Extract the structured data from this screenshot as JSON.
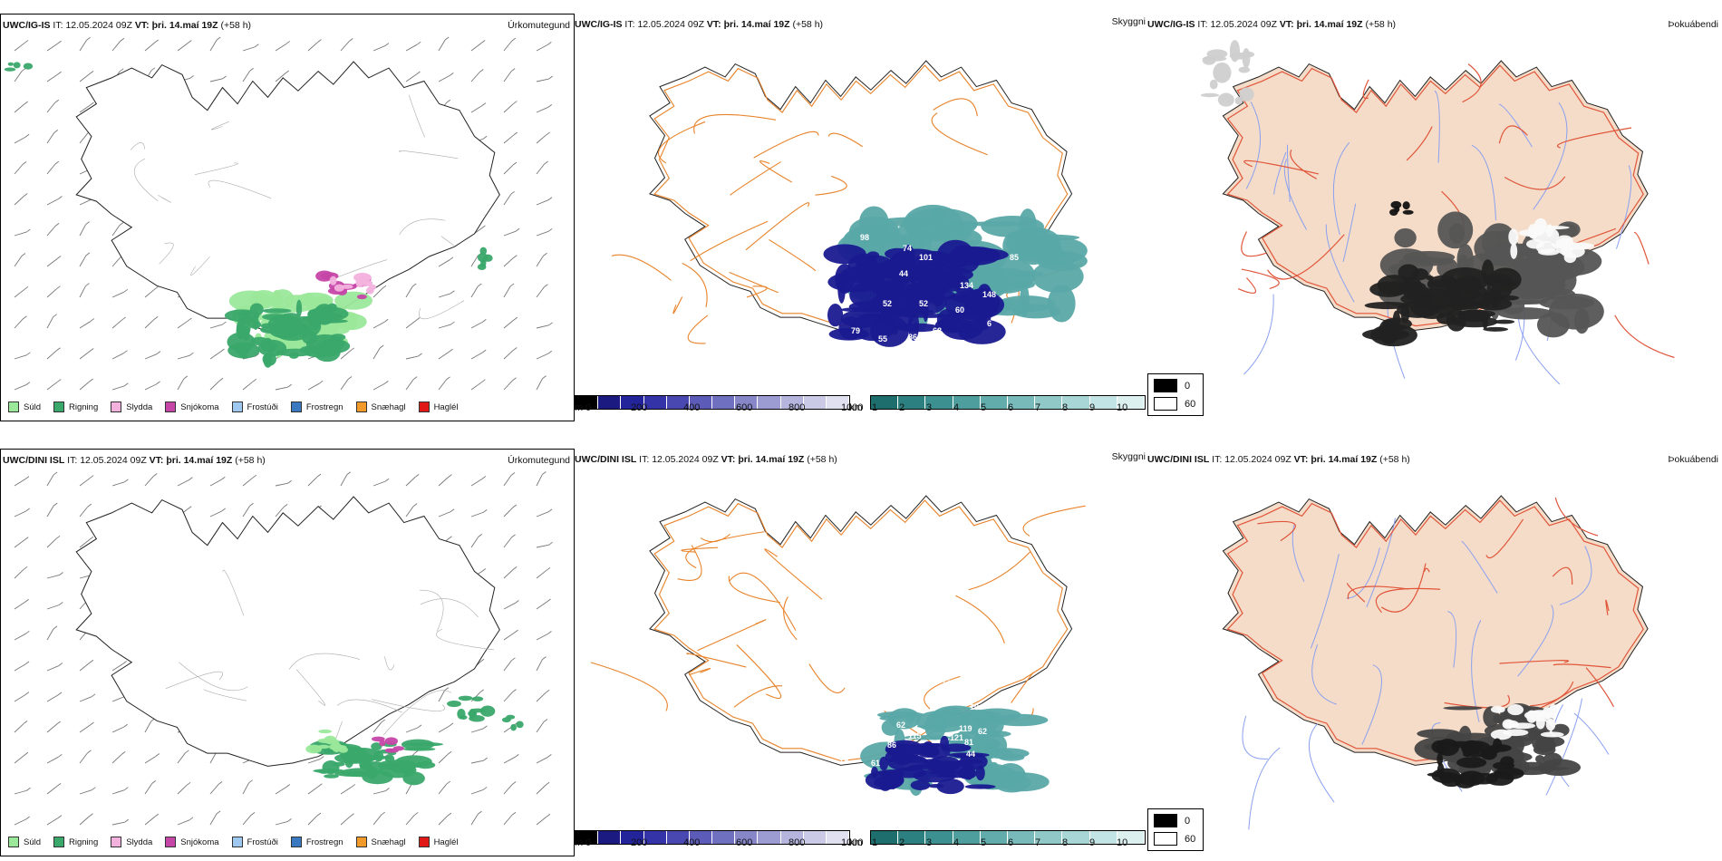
{
  "panels_top": {
    "precip": {
      "model": "UWC/IG-IS",
      "it_label": "IT:",
      "it_value": "12.05.2024 09Z",
      "vt_label": "VT:",
      "vt_value": "þri. 14.maí 19Z",
      "lead": "(+58 h)",
      "right_title": "Úrkomutegund"
    },
    "vis": {
      "model": "UWC/IG-IS",
      "it_label": "IT:",
      "it_value": "12.05.2024 09Z",
      "vt_label": "VT:",
      "vt_value": "þri. 14.maí 19Z",
      "lead": "(+58 h)",
      "right_title": "Skyggni",
      "labels": [
        "98",
        "74",
        "101",
        "85",
        "44",
        "52",
        "52",
        "134",
        "148",
        "60",
        "6",
        "79",
        "55",
        "86",
        "68",
        "77",
        "98"
      ]
    },
    "fog": {
      "model": "UWC/IG-IS",
      "it_label": "IT:",
      "it_value": "12.05.2024 09Z",
      "vt_label": "VT:",
      "vt_value": "þri. 14.maí 19Z",
      "lead": "(+58 h)",
      "right_title": "Þokuábendi"
    }
  },
  "panels_bottom": {
    "precip": {
      "model": "UWC/DINI ISL",
      "it_label": "IT:",
      "it_value": "12.05.2024 09Z",
      "vt_label": "VT:",
      "vt_value": "þri. 14.maí 19Z",
      "lead": "(+58 h)",
      "right_title": "Úrkomutegund"
    },
    "vis": {
      "model": "UWC/DINI ISL",
      "it_label": "IT:",
      "it_value": "12.05.2024 09Z",
      "vt_label": "VT:",
      "vt_value": "þri. 14.maí 19Z",
      "lead": "(+58 h)",
      "right_title": "Skyggni",
      "labels": [
        "140",
        "103",
        "104",
        "62",
        "115",
        "86",
        "119",
        "62",
        "121",
        "81",
        "44",
        "79",
        "61",
        "77"
      ]
    },
    "fog": {
      "model": "UWC/DINI ISL",
      "it_label": "IT:",
      "it_value": "12.05.2024 09Z",
      "vt_label": "VT:",
      "vt_value": "þri. 14.maí 19Z",
      "lead": "(+58 h)",
      "right_title": "Þokuábendi"
    }
  },
  "precip_legend": [
    {
      "label": "Súld",
      "color": "#9be89b"
    },
    {
      "label": "Rigning",
      "color": "#3aa86a"
    },
    {
      "label": "Slydda",
      "color": "#f3b2de"
    },
    {
      "label": "Snjókoma",
      "color": "#c646a8"
    },
    {
      "label": "Frostúði",
      "color": "#9ec8f0"
    },
    {
      "label": "Frostregn",
      "color": "#3a78c0"
    },
    {
      "label": "Snæhagl",
      "color": "#f29a2a"
    },
    {
      "label": "Haglél",
      "color": "#e01818"
    }
  ],
  "vis_colorbar_m": {
    "unit": "m",
    "ticks": [
      "0",
      "200",
      "400",
      "600",
      "800",
      "1000"
    ],
    "colors": [
      "#000000",
      "#1a1a80",
      "#24249a",
      "#3434a8",
      "#4848b0",
      "#5c5cb8",
      "#7070c0",
      "#8686c8",
      "#9c9cd2",
      "#b4b4dc",
      "#cacae6",
      "#e0e0f0"
    ]
  },
  "vis_colorbar_km": {
    "unit": "km",
    "ticks": [
      "1",
      "2",
      "3",
      "4",
      "5",
      "6",
      "7",
      "8",
      "9",
      "10"
    ],
    "colors": [
      "#1e6e6e",
      "#2d8080",
      "#3c9090",
      "#4e9e9e",
      "#62acac",
      "#78baba",
      "#90c8c8",
      "#a8d6d6",
      "#c2e4e4",
      "#dcf0f0"
    ]
  },
  "fog_legend": {
    "items": [
      {
        "label": "0",
        "color": "#000000"
      },
      {
        "label": "60",
        "color": "#ffffff"
      }
    ]
  },
  "colors": {
    "land_fog": "#f5dcc8",
    "roads_vis": "#e8832a",
    "roads_fog": "#e0553a",
    "rivers": "#8aa0f0",
    "vis_dark": "#1a1a90",
    "vis_teal": "#5aa8a8"
  }
}
